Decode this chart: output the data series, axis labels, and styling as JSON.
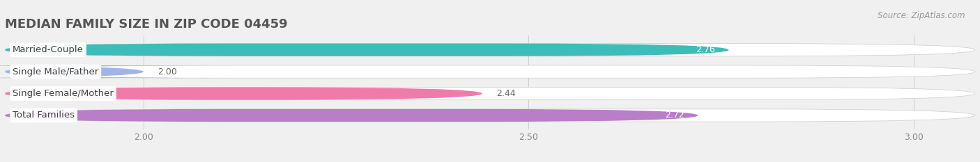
{
  "title": "MEDIAN FAMILY SIZE IN ZIP CODE 04459",
  "source": "Source: ZipAtlas.com",
  "categories": [
    "Married-Couple",
    "Single Male/Father",
    "Single Female/Mother",
    "Total Families"
  ],
  "values": [
    2.76,
    2.0,
    2.44,
    2.72
  ],
  "bar_colors": [
    "#3dbdb8",
    "#a0b4e8",
    "#f07aaa",
    "#b87ec8"
  ],
  "value_colors": [
    "white",
    "#777777",
    "#777777",
    "white"
  ],
  "xlim_left": 1.82,
  "xlim_right": 3.08,
  "xticks": [
    2.0,
    2.5,
    3.0
  ],
  "page_bg": "#f0f0f0",
  "bar_track_color": "#e8e8e8",
  "bar_track_border": "#dddddd",
  "title_fontsize": 13,
  "label_fontsize": 9.5,
  "value_fontsize": 9,
  "source_fontsize": 8.5,
  "tick_fontsize": 9
}
